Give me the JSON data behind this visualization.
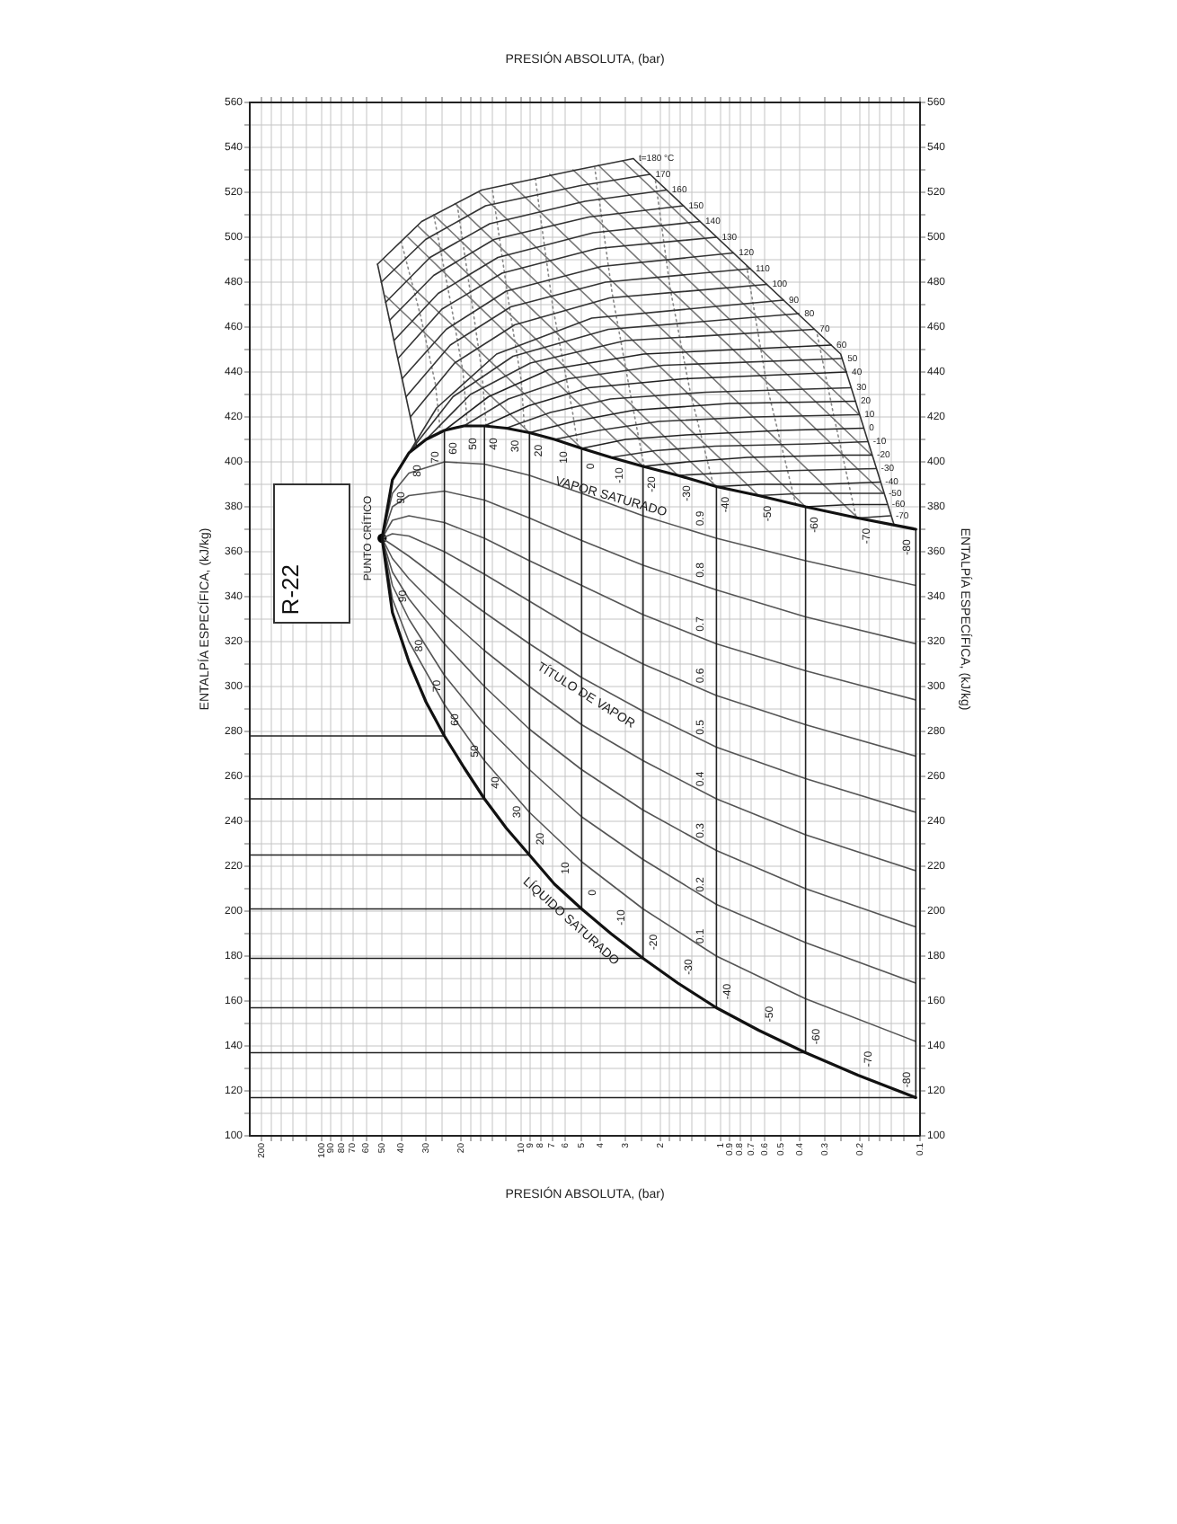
{
  "chart_data": {
    "type": "line",
    "title": "R-22",
    "xlabel": "PRESIÓN ABSOLUTA, (bar)",
    "x2label": "PRESIÓN ABSOLUTA, (bar)",
    "ylabel": "ENTALPÍA ESPECÍFICA, (kJ/kg)",
    "y2label": "ENTALPÍA ESPECÍFICA, (kJ/kg)",
    "log": "x",
    "grid": true,
    "xlim": [
      230,
      0.1
    ],
    "ylim": [
      100,
      560
    ],
    "y2lim": [
      100,
      560
    ],
    "xticks": [
      200,
      {
        "value": 180,
        "label": null
      },
      {
        "value": 160,
        "label": null
      },
      {
        "value": 140,
        "label": null
      },
      {
        "value": 120,
        "label": null
      },
      100,
      90,
      80,
      70,
      60,
      50,
      40,
      30,
      {
        "value": 25,
        "label": null
      },
      20,
      {
        "value": 18,
        "label": null
      },
      {
        "value": 16,
        "label": null
      },
      {
        "value": 14,
        "label": null
      },
      {
        "value": 12,
        "label": null
      },
      10,
      9,
      8,
      7,
      6,
      5,
      4,
      3,
      {
        "value": 2.5,
        "label": null
      },
      2,
      {
        "value": 1.8,
        "label": null
      },
      {
        "value": 1.6,
        "label": null
      },
      {
        "value": 1.4,
        "label": null
      },
      {
        "value": 1.2,
        "label": null
      },
      1,
      0.9,
      0.8,
      0.7,
      0.6,
      0.5,
      0.4,
      0.3,
      {
        "value": 0.25,
        "label": null
      },
      0.2,
      {
        "value": 0.18,
        "label": null
      },
      {
        "value": 0.16,
        "label": null
      },
      {
        "value": 0.14,
        "label": null
      },
      {
        "value": 0.12,
        "label": null
      },
      0.1
    ],
    "yticks": [
      100,
      {
        "value": 110,
        "label": null
      },
      120,
      {
        "value": 130,
        "label": null
      },
      140,
      {
        "value": 150,
        "label": null
      },
      160,
      {
        "value": 170,
        "label": null
      },
      180,
      {
        "value": 190,
        "label": null
      },
      200,
      {
        "value": 210,
        "label": null
      },
      220,
      {
        "value": 230,
        "label": null
      },
      240,
      {
        "value": 250,
        "label": null
      },
      260,
      {
        "value": 270,
        "label": null
      },
      280,
      {
        "value": 290,
        "label": null
      },
      300,
      {
        "value": 310,
        "label": null
      },
      320,
      {
        "value": 330,
        "label": null
      },
      340,
      {
        "value": 350,
        "label": null
      },
      360,
      {
        "value": 370,
        "label": null
      },
      380,
      {
        "value": 390,
        "label": null
      },
      400,
      {
        "value": 410,
        "label": null
      },
      420,
      {
        "value": 430,
        "label": null
      },
      440,
      {
        "value": 450,
        "label": null
      },
      460,
      {
        "value": 470,
        "label": null
      },
      480,
      {
        "value": 490,
        "label": null
      },
      500,
      {
        "value": 510,
        "label": null
      },
      520,
      {
        "value": 530,
        "label": null
      },
      540,
      {
        "value": 550,
        "label": null
      },
      560
    ],
    "y2ticks": [
      100,
      {
        "value": 110,
        "label": null
      },
      120,
      {
        "value": 130,
        "label": null
      },
      140,
      {
        "value": 150,
        "label": null
      },
      160,
      {
        "value": 170,
        "label": null
      },
      180,
      {
        "value": 190,
        "label": null
      },
      200,
      {
        "value": 210,
        "label": null
      },
      220,
      {
        "value": 230,
        "label": null
      },
      240,
      {
        "value": 250,
        "label": null
      },
      260,
      {
        "value": 270,
        "label": null
      },
      280,
      {
        "value": 290,
        "label": null
      },
      300,
      {
        "value": 310,
        "label": null
      },
      320,
      {
        "value": 330,
        "label": null
      },
      340,
      {
        "value": 350,
        "label": null
      },
      360,
      {
        "value": 370,
        "label": null
      },
      380,
      {
        "value": 390,
        "label": null
      },
      400,
      {
        "value": 410,
        "label": null
      },
      420,
      {
        "value": 430,
        "label": null
      },
      440,
      {
        "value": 450,
        "label": null
      },
      460,
      {
        "value": 470,
        "label": null
      },
      480,
      {
        "value": 490,
        "label": null
      },
      500,
      {
        "value": 510,
        "label": null
      },
      520,
      {
        "value": 530,
        "label": null
      },
      540,
      {
        "value": 550,
        "label": null
      },
      560
    ],
    "series": [
      {
        "color": "#111111",
        "x": [
          0.105,
          0.205,
          0.375,
          0.645,
          1.05,
          1.64,
          2.45,
          3.55,
          4.98,
          6.81,
          9.1,
          11.9,
          15.3,
          19.4,
          24.3,
          30,
          36.6,
          44.3,
          49.9
        ],
        "values": [
          117,
          127,
          137,
          147,
          157,
          168,
          179,
          190,
          201,
          212,
          225,
          237,
          250,
          264,
          278,
          293,
          311,
          333,
          366
        ]
      },
      {
        "color": "#111111",
        "x": [
          49.9,
          44.3,
          36.6,
          30,
          24.3,
          19.4,
          15.3,
          11.9,
          9.1,
          6.81,
          4.98,
          3.55,
          2.45,
          1.64,
          1.05,
          0.645,
          0.375,
          0.205,
          0.105
        ],
        "values": [
          366,
          392,
          404,
          410,
          414,
          416,
          416,
          415,
          413,
          410,
          406,
          402,
          398,
          394,
          389,
          385,
          380,
          375,
          370
        ]
      },
      {
        "color": "#222222",
        "x": [
          230,
          0.105,
          0.105
        ],
        "values": [
          117,
          117,
          370
        ]
      },
      {
        "color": "#222222",
        "x": [
          230,
          0.375,
          0.375,
          0.225,
          0.147
        ],
        "values": [
          137,
          137,
          380,
          381,
          381
        ]
      },
      {
        "color": "#222222",
        "x": [
          230,
          1.05,
          1.05,
          0.63,
          0.315,
          0.159
        ],
        "values": [
          157,
          157,
          389,
          390,
          390,
          391
        ]
      },
      {
        "color": "#222222",
        "x": [
          230,
          2.45,
          2.45,
          1.47,
          0.735,
          0.245,
          0.175
        ],
        "values": [
          179,
          179,
          398,
          400,
          402,
          403,
          403
        ]
      },
      {
        "color": "#222222",
        "x": [
          230,
          4.98,
          4.98,
          2.99,
          1.49,
          0.498,
          0.192
        ],
        "values": [
          201,
          201,
          406,
          410,
          412,
          414,
          415
        ]
      },
      {
        "color": "#222222",
        "x": [
          230,
          9.1,
          9.1,
          5.46,
          2.73,
          0.91,
          0.211
        ],
        "values": [
          225,
          225,
          413,
          418,
          423,
          426,
          427
        ]
      },
      {
        "color": "#222222",
        "x": [
          230,
          15.3,
          15.3,
          9.18,
          4.59,
          1.53,
          0.234
        ],
        "values": [
          250,
          250,
          416,
          425,
          433,
          437,
          440
        ]
      },
      {
        "color": "#222222",
        "x": [
          230,
          24.3,
          24.3,
          14.6,
          7.29,
          2.43,
          0.279
        ],
        "values": [
          278,
          278,
          414,
          429,
          441,
          448,
          452
        ]
      },
      {
        "color": "#333333",
        "x": [
          0.205,
          0.141
        ],
        "values": [
          375,
          376
        ]
      },
      {
        "color": "#333333",
        "x": [
          0.645,
          0.387,
          0.153
        ],
        "values": [
          385,
          386,
          386
        ]
      },
      {
        "color": "#333333",
        "x": [
          1.64,
          0.984,
          0.492,
          0.167
        ],
        "values": [
          394,
          395,
          396,
          397
        ]
      },
      {
        "color": "#333333",
        "x": [
          3.55,
          2.13,
          1.07,
          0.355,
          0.183
        ],
        "values": [
          402,
          405,
          407,
          408,
          409
        ]
      },
      {
        "color": "#333333",
        "x": [
          6.81,
          4.09,
          2.04,
          0.681,
          0.202
        ],
        "values": [
          410,
          414,
          418,
          420,
          421
        ]
      },
      {
        "color": "#333333",
        "x": [
          11.9,
          7.14,
          3.57,
          1.19,
          0.222
        ],
        "values": [
          415,
          422,
          428,
          431,
          433
        ]
      },
      {
        "color": "#333333",
        "x": [
          19.4,
          11.6,
          5.82,
          1.94,
          0.246
        ],
        "values": [
          416,
          428,
          437,
          443,
          446
        ]
      },
      {
        "color": "#333333",
        "x": [
          30,
          18,
          9,
          3,
          0.339
        ],
        "values": [
          410,
          430,
          444,
          454,
          459
        ]
      },
      {
        "color": "#333333",
        "x": [
          36.6,
          22,
          11,
          3.66,
          0.405
        ],
        "values": [
          404,
          429,
          447,
          459,
          466
        ]
      },
      {
        "color": "#333333",
        "x": [
          44.3,
          26.6,
          13.3,
          4.43,
          0.484
        ],
        "values": [
          392,
          424,
          448,
          464,
          472
        ]
      },
      {
        "color": "#333333",
        "x": [
          36,
          21.6,
          10.8,
          3.6,
          0.587
        ],
        "values": [
          420,
          444,
          461,
          473,
          479
        ]
      },
      {
        "color": "#333333",
        "x": [
          37.8,
          22.7,
          11.3,
          3.78,
          0.711
        ],
        "values": [
          429,
          452,
          469,
          480,
          486
        ]
      },
      {
        "color": "#333333",
        "x": [
          39.6,
          23.8,
          11.9,
          3.96,
          0.863
        ],
        "values": [
          437,
          459,
          476,
          487,
          493
        ]
      },
      {
        "color": "#333333",
        "x": [
          41.6,
          25,
          12.5,
          4.16,
          1.05
        ],
        "values": [
          446,
          468,
          484,
          495,
          500
        ]
      },
      {
        "color": "#333333",
        "x": [
          43.5,
          26.1,
          13.1,
          4.35,
          1.27
        ],
        "values": [
          454,
          475,
          491,
          502,
          507
        ]
      },
      {
        "color": "#333333",
        "x": [
          45.8,
          27.5,
          13.7,
          4.58,
          1.54
        ],
        "values": [
          463,
          483,
          499,
          509,
          514
        ]
      },
      {
        "color": "#333333",
        "x": [
          47.9,
          28.7,
          14.4,
          4.79,
          1.87
        ],
        "values": [
          471,
          491,
          506,
          516,
          521
        ]
      },
      {
        "color": "#333333",
        "x": [
          50.4,
          30.2,
          15.1,
          5.04,
          2.26
        ],
        "values": [
          480,
          499,
          514,
          523,
          528
        ]
      },
      {
        "color": "#333333",
        "x": [
          52.6,
          31.6,
          15.8,
          5.26,
          2.74
        ],
        "values": [
          488,
          507,
          521,
          530,
          535
        ]
      },
      {
        "color": "#333333",
        "x": [
          33.5,
          52.6
        ],
        "values": [
          407,
          488
        ]
      },
      {
        "color": "#333333",
        "x": [
          2.74,
          0.25,
          0.135
        ],
        "values": [
          535,
          448,
          372
        ]
      },
      {
        "color": "#555555",
        "x": [
          49.9,
          44.3,
          36.6,
          24.3,
          15.3,
          9.1,
          4.98,
          2.45,
          1.05,
          0.375,
          0.105
        ],
        "values": [
          366,
          339,
          320,
          292,
          267,
          244,
          222,
          201,
          180,
          161,
          142
        ]
      },
      {
        "color": "#555555",
        "x": [
          49.9,
          44.3,
          36.6,
          24.3,
          15.3,
          9.1,
          4.98,
          2.45,
          1.05,
          0.375,
          0.105
        ],
        "values": [
          366,
          345,
          330,
          305,
          283,
          263,
          242,
          223,
          203,
          186,
          168
        ]
      },
      {
        "color": "#555555",
        "x": [
          49.9,
          44.3,
          36.6,
          24.3,
          15.3,
          9.1,
          4.98,
          2.45,
          1.05,
          0.375,
          0.105
        ],
        "values": [
          366,
          351,
          339,
          319,
          300,
          281,
          263,
          245,
          227,
          210,
          193
        ]
      },
      {
        "color": "#555555",
        "x": [
          49.9,
          44.3,
          36.6,
          24.3,
          15.3,
          9.1,
          4.98,
          2.45,
          1.05,
          0.375,
          0.105
        ],
        "values": [
          366,
          357,
          348,
          332,
          316,
          300,
          283,
          267,
          250,
          234,
          218
        ]
      },
      {
        "color": "#555555",
        "x": [
          49.9,
          44.3,
          36.6,
          24.3,
          15.3,
          9.1,
          4.98,
          2.45,
          1.05,
          0.375,
          0.105
        ],
        "values": [
          366,
          363,
          358,
          346,
          333,
          319,
          304,
          289,
          273,
          259,
          244
        ]
      },
      {
        "color": "#555555",
        "x": [
          49.9,
          44.3,
          36.6,
          24.3,
          15.3,
          9.1,
          4.98,
          2.45,
          1.05,
          0.375,
          0.105
        ],
        "values": [
          366,
          368,
          367,
          360,
          350,
          338,
          324,
          310,
          296,
          283,
          269
        ]
      },
      {
        "color": "#555555",
        "x": [
          49.9,
          44.3,
          36.6,
          24.3,
          15.3,
          9.1,
          4.98,
          2.45,
          1.05,
          0.375,
          0.105
        ],
        "values": [
          366,
          374,
          376,
          373,
          366,
          356,
          345,
          332,
          319,
          307,
          294
        ]
      },
      {
        "color": "#555555",
        "x": [
          49.9,
          44.3,
          36.6,
          24.3,
          15.3,
          9.1,
          4.98,
          2.45,
          1.05,
          0.375,
          0.105
        ],
        "values": [
          366,
          380,
          385,
          387,
          383,
          375,
          365,
          354,
          343,
          331,
          319
        ]
      },
      {
        "color": "#555555",
        "x": [
          49.9,
          44.3,
          36.6,
          24.3,
          15.3,
          9.1,
          4.98,
          2.45,
          1.05,
          0.375,
          0.105
        ],
        "values": [
          366,
          386,
          395,
          400,
          399,
          394,
          386,
          376,
          366,
          356,
          345
        ]
      },
      {
        "color": "#777777",
        "x": [
          9.1,
          48
        ],
        "values": [
          413,
          474
        ]
      },
      {
        "color": "#777777",
        "x": [
          4.98,
          49
        ],
        "values": [
          406,
          490
        ]
      },
      {
        "color": "#777777",
        "x": [
          2.45,
          37
        ],
        "values": [
          398,
          500
        ]
      },
      {
        "color": "#777777",
        "x": [
          1.64,
          33
        ],
        "values": [
          394,
          505
        ]
      },
      {
        "color": "#777777",
        "x": [
          1.05,
          27.5
        ],
        "values": [
          389,
          510
        ]
      },
      {
        "color": "#777777",
        "x": [
          0.645,
          21.5
        ],
        "values": [
          385,
          515
        ]
      },
      {
        "color": "#777777",
        "x": [
          0.375,
          16.3
        ],
        "values": [
          380,
          520
        ]
      },
      {
        "color": "#777777",
        "x": [
          0.205,
          11.3
        ],
        "values": [
          375,
          524
        ]
      },
      {
        "color": "#777777",
        "x": [
          0.153,
          7.2
        ],
        "values": [
          386,
          528
        ]
      },
      {
        "color": "#777777",
        "x": [
          0.175,
          5.5
        ],
        "values": [
          403,
          530
        ]
      },
      {
        "color": "#777777",
        "x": [
          0.202,
          4.1
        ],
        "values": [
          421,
          532
        ]
      },
      {
        "color": "#777777",
        "x": [
          0.234,
          3.1
        ],
        "values": [
          440,
          534
        ]
      },
      {
        "color": "#888888",
        "line_style": "dotted",
        "x": [
          0.21,
          0.27,
          0.33
        ],
        "values": [
          376,
          420,
          458
        ]
      },
      {
        "color": "#888888",
        "line_style": "dotted",
        "x": [
          0.42,
          0.583,
          0.74
        ],
        "values": [
          381,
          433,
          487
        ]
      },
      {
        "color": "#888888",
        "line_style": "dotted",
        "x": [
          1.09,
          1.42,
          1.79,
          2.13
        ],
        "values": [
          390,
          431,
          477,
          526
        ]
      },
      {
        "color": "#888888",
        "line_style": "dotted",
        "x": [
          2.42,
          2.82,
          3.5,
          4.28
        ],
        "values": [
          398,
          429,
          475,
          531
        ]
      },
      {
        "color": "#888888",
        "line_style": "dotted",
        "x": [
          5.2,
          5.55,
          6.95,
          8.5
        ],
        "values": [
          407,
          423,
          469,
          526
        ]
      },
      {
        "color": "#888888",
        "line_style": "dotted",
        "x": [
          9.6,
          10,
          11.3,
          14
        ],
        "values": [
          413,
          436,
          465,
          522
        ]
      },
      {
        "color": "#888888",
        "line_style": "dotted",
        "x": [
          15,
          15.8,
          17.5,
          21
        ],
        "values": [
          416,
          441,
          468,
          515
        ]
      },
      {
        "color": "#888888",
        "line_style": "dotted",
        "x": [
          18.6,
          19.6,
          22.5,
          27.5
        ],
        "values": [
          416,
          440,
          470,
          510
        ]
      },
      {
        "color": "#888888",
        "line_style": "dotted",
        "x": [
          25.4,
          27,
          32,
          40
        ],
        "values": [
          413,
          435,
          465,
          498
        ]
      },
      {
        "type": "scatter",
        "marker": "circle",
        "color": "#000000",
        "x": [
          49.9
        ],
        "values": [
          366
        ]
      }
    ],
    "annotations": [
      {
        "text": "LÍQUIDO SATURADO",
        "x": 4.98,
        "y": 201
      },
      "VAPOR SATURADO",
      {
        "text": "TÍTULO DE VAPOR",
        "x": 4.74,
        "y": 296
      },
      {
        "text": "t=180 °C",
        "x": 2.74,
        "y": 535
      },
      {
        "text": "170",
        "x": 2.26,
        "y": 528
      },
      {
        "text": "160",
        "x": 1.87,
        "y": 521
      },
      {
        "text": "150",
        "x": 1.54,
        "y": 514
      },
      {
        "text": "140",
        "x": 1.27,
        "y": 507
      },
      {
        "text": "130",
        "x": 1.05,
        "y": 500
      },
      {
        "text": "120",
        "x": 0.863,
        "y": 493
      },
      {
        "text": "110",
        "x": 0.711,
        "y": 486
      },
      {
        "text": "100",
        "x": 0.587,
        "y": 479
      },
      {
        "text": "90",
        "x": 0.484,
        "y": 472
      },
      {
        "text": "80",
        "x": 0.405,
        "y": 466
      },
      {
        "text": "70",
        "x": 0.339,
        "y": 459
      },
      {
        "text": "60",
        "x": 0.279,
        "y": 452
      },
      {
        "text": "50",
        "x": 0.246,
        "y": 446
      },
      {
        "text": "40",
        "x": 0.234,
        "y": 440
      },
      {
        "text": "30",
        "x": 0.222,
        "y": 433
      },
      {
        "text": "20",
        "x": 0.211,
        "y": 427
      },
      {
        "text": "10",
        "x": 0.202,
        "y": 421
      },
      {
        "text": "0",
        "x": 0.192,
        "y": 415
      },
      {
        "text": "-10",
        "x": 0.183,
        "y": 409
      },
      {
        "text": "-20",
        "x": 0.175,
        "y": 403
      },
      {
        "text": "-30",
        "x": 0.167,
        "y": 397
      },
      {
        "text": "-40",
        "x": 0.159,
        "y": 391
      },
      {
        "text": "-50",
        "x": 0.153,
        "y": 386
      },
      {
        "text": "-60",
        "x": 0.147,
        "y": 381
      },
      {
        "text": "-70",
        "x": 0.141,
        "y": 376
      },
      {
        "text": "PUNTO CRÍTICO",
        "x": 49.9,
        "y": 366
      },
      {
        "text": "-80",
        "x": 0.105,
        "y": 117
      },
      {
        "text": "-70",
        "x": 0.205,
        "y": 127
      },
      {
        "text": "-60",
        "x": 0.375,
        "y": 137
      },
      {
        "text": "-50",
        "x": 0.645,
        "y": 147
      },
      {
        "text": "-40",
        "x": 1.05,
        "y": 157
      },
      {
        "text": "-30",
        "x": 1.64,
        "y": 168
      },
      {
        "text": "-20",
        "x": 2.45,
        "y": 179
      },
      {
        "text": "-10",
        "x": 3.55,
        "y": 190
      },
      {
        "text": "0",
        "x": 4.98,
        "y": 201
      },
      {
        "text": "10",
        "x": 6.81,
        "y": 212
      },
      {
        "text": "20",
        "x": 9.1,
        "y": 225
      },
      {
        "text": "30",
        "x": 11.9,
        "y": 237
      },
      {
        "text": "40",
        "x": 15.3,
        "y": 250
      },
      {
        "text": "50",
        "x": 19.4,
        "y": 264
      },
      {
        "text": "60",
        "x": 24.3,
        "y": 278
      },
      {
        "text": "70",
        "x": 30,
        "y": 293
      },
      {
        "text": "80",
        "x": 36.6,
        "y": 311
      },
      {
        "text": "90",
        "x": 44.3,
        "y": 333
      },
      {
        "text": "-80",
        "x": 0.105,
        "y": 370
      },
      {
        "text": "-70",
        "x": 0.205,
        "y": 375
      },
      {
        "text": "-60",
        "x": 0.375,
        "y": 380
      },
      {
        "text": "-50",
        "x": 0.645,
        "y": 385
      },
      {
        "text": "-40",
        "x": 1.05,
        "y": 389
      },
      {
        "text": "-30",
        "x": 1.64,
        "y": 394
      },
      {
        "text": "-20",
        "x": 2.45,
        "y": 398
      },
      {
        "text": "-10",
        "x": 3.55,
        "y": 402
      },
      {
        "text": "0",
        "x": 4.98,
        "y": 406
      },
      {
        "text": "10",
        "x": 6.81,
        "y": 410
      },
      {
        "text": "20",
        "x": 9.1,
        "y": 413
      },
      {
        "text": "30",
        "x": 11.9,
        "y": 415
      },
      {
        "text": "40",
        "x": 15.3,
        "y": 416
      },
      {
        "text": "50",
        "x": 19.4,
        "y": 416
      },
      {
        "text": "60",
        "x": 24.3,
        "y": 414
      },
      {
        "text": "70",
        "x": 30,
        "y": 410
      },
      {
        "text": "80",
        "x": 36.6,
        "y": 404
      },
      {
        "text": "90",
        "x": 44.3,
        "y": 392
      },
      {
        "text": "0.1",
        "x": 1.05,
        "y": 180
      },
      {
        "text": "0.2",
        "x": 1.05,
        "y": 203
      },
      {
        "text": "0.3",
        "x": 1.05,
        "y": 227
      },
      {
        "text": "0.4",
        "x": 1.05,
        "y": 250
      },
      {
        "text": "0.5",
        "x": 1.05,
        "y": 273
      },
      {
        "text": "0.6",
        "x": 1.05,
        "y": 296
      },
      {
        "text": "0.7",
        "x": 1.05,
        "y": 319
      },
      {
        "text": "0.8",
        "x": 1.05,
        "y": 343
      },
      {
        "text": "0.9",
        "x": 1.05,
        "y": 366
      }
    ]
  }
}
